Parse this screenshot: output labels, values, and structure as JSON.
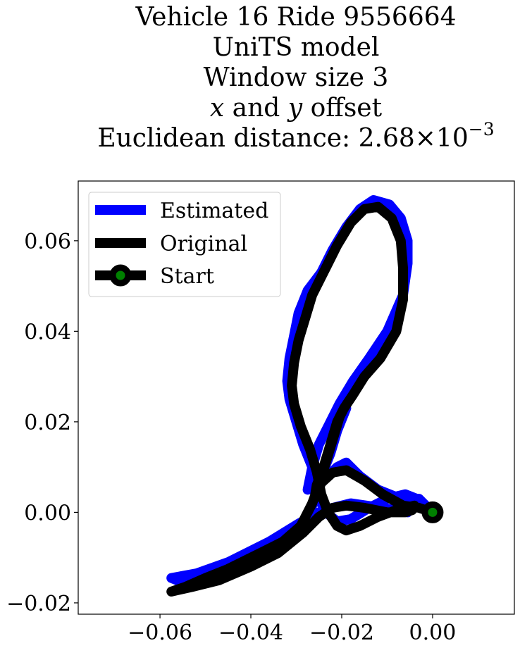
{
  "chart_data": {
    "type": "line",
    "title": {
      "lines": [
        "Vehicle 16 Ride 9556664",
        "UniTS model",
        "Window size 3"
      ],
      "offset_line": {
        "var1": "x",
        "mid": " and ",
        "var2": "y",
        "tail": " offset"
      },
      "distance_line": {
        "prefix": "Euclidean distance: ",
        "mantissa": "2.68",
        "times": "×",
        "base": "10",
        "exponent": "−3"
      }
    },
    "xlabel": "",
    "ylabel": "",
    "xlim": [
      -0.078,
      0.018
    ],
    "ylim": [
      -0.0225,
      0.0732
    ],
    "xticks": [
      -0.06,
      -0.04,
      -0.02,
      0.0
    ],
    "xtick_labels": [
      "−0.06",
      "−0.04",
      "−0.02",
      "0.00"
    ],
    "yticks": [
      -0.02,
      0.0,
      0.02,
      0.04,
      0.06
    ],
    "ytick_labels": [
      "−0.02",
      "0.00",
      "0.02",
      "0.04",
      "0.06"
    ],
    "grid": false,
    "legend_position": "top-left",
    "series": [
      {
        "name": "Estimated",
        "color": "#0000ff",
        "points": [
          [
            0.0,
            0.0
          ],
          [
            -0.003,
            0.003
          ],
          [
            -0.007,
            0.003
          ],
          [
            -0.012,
            0.005
          ],
          [
            -0.016,
            0.008
          ],
          [
            -0.019,
            0.011
          ],
          [
            -0.021,
            0.01
          ],
          [
            -0.023,
            0.008
          ],
          [
            -0.0255,
            0.0055
          ],
          [
            -0.0275,
            0.005
          ],
          [
            -0.0265,
            0.01
          ],
          [
            -0.025,
            0.015
          ],
          [
            -0.0225,
            0.02
          ],
          [
            -0.0205,
            0.024
          ],
          [
            -0.0175,
            0.029
          ],
          [
            -0.014,
            0.034
          ],
          [
            -0.01,
            0.04
          ],
          [
            -0.0065,
            0.048
          ],
          [
            -0.0055,
            0.055
          ],
          [
            -0.0055,
            0.06
          ],
          [
            -0.007,
            0.065
          ],
          [
            -0.0095,
            0.068
          ],
          [
            -0.013,
            0.069
          ],
          [
            -0.016,
            0.067
          ],
          [
            -0.019,
            0.063
          ],
          [
            -0.022,
            0.058
          ],
          [
            -0.0245,
            0.053
          ],
          [
            -0.0275,
            0.049
          ],
          [
            -0.0295,
            0.044
          ],
          [
            -0.0305,
            0.039
          ],
          [
            -0.0315,
            0.034
          ],
          [
            -0.032,
            0.029
          ],
          [
            -0.0315,
            0.025
          ],
          [
            -0.03,
            0.02
          ],
          [
            -0.0285,
            0.015
          ],
          [
            -0.0265,
            0.01
          ],
          [
            -0.0255,
            0.006
          ],
          [
            -0.025,
            0.003
          ],
          [
            -0.0235,
            0.0
          ],
          [
            -0.021,
            -0.002
          ],
          [
            -0.018,
            -0.0015
          ],
          [
            -0.014,
            0.001
          ],
          [
            -0.01,
            0.003
          ],
          [
            -0.006,
            0.004
          ],
          [
            -0.0035,
            0.003
          ],
          [
            -0.0055,
            0.0
          ],
          [
            -0.011,
            0.001
          ],
          [
            -0.018,
            0.002
          ],
          [
            -0.022,
            0.001
          ],
          [
            -0.025,
            0.0
          ],
          [
            -0.0295,
            -0.0025
          ],
          [
            -0.036,
            -0.0065
          ],
          [
            -0.045,
            -0.011
          ],
          [
            -0.052,
            -0.0135
          ],
          [
            -0.0575,
            -0.0145
          ],
          [
            -0.055,
            -0.0155
          ],
          [
            -0.048,
            -0.014
          ],
          [
            -0.042,
            -0.012
          ],
          [
            -0.036,
            -0.0095
          ],
          [
            -0.031,
            -0.006
          ],
          [
            -0.0275,
            -0.0015
          ],
          [
            -0.026,
            0.003
          ],
          [
            -0.0245,
            0.008
          ],
          [
            -0.0225,
            0.013
          ],
          [
            -0.021,
            0.018
          ],
          [
            -0.019,
            0.023
          ]
        ]
      },
      {
        "name": "Original",
        "color": "#000000",
        "points": [
          [
            0.0,
            0.0
          ],
          [
            -0.003,
            0.001
          ],
          [
            -0.0065,
            0.0015
          ],
          [
            -0.011,
            0.004
          ],
          [
            -0.015,
            0.007
          ],
          [
            -0.019,
            0.0093
          ],
          [
            -0.022,
            0.0088
          ],
          [
            -0.0245,
            0.0065
          ],
          [
            -0.026,
            0.003
          ],
          [
            -0.0255,
            0.006
          ],
          [
            -0.024,
            0.01
          ],
          [
            -0.0225,
            0.015
          ],
          [
            -0.021,
            0.02
          ],
          [
            -0.0195,
            0.023
          ],
          [
            -0.0175,
            0.026
          ],
          [
            -0.015,
            0.03
          ],
          [
            -0.0115,
            0.034
          ],
          [
            -0.008,
            0.04
          ],
          [
            -0.0065,
            0.047
          ],
          [
            -0.0065,
            0.054
          ],
          [
            -0.007,
            0.06
          ],
          [
            -0.009,
            0.065
          ],
          [
            -0.012,
            0.0675
          ],
          [
            -0.015,
            0.067
          ],
          [
            -0.018,
            0.064
          ],
          [
            -0.021,
            0.059
          ],
          [
            -0.024,
            0.053
          ],
          [
            -0.0265,
            0.048
          ],
          [
            -0.028,
            0.043
          ],
          [
            -0.0295,
            0.038
          ],
          [
            -0.0305,
            0.033
          ],
          [
            -0.031,
            0.028
          ],
          [
            -0.0305,
            0.024
          ],
          [
            -0.029,
            0.019
          ],
          [
            -0.027,
            0.014
          ],
          [
            -0.0255,
            0.009
          ],
          [
            -0.0245,
            0.004
          ],
          [
            -0.023,
            0.0
          ],
          [
            -0.021,
            -0.003
          ],
          [
            -0.019,
            -0.004
          ],
          [
            -0.016,
            -0.003
          ],
          [
            -0.012,
            -0.001
          ],
          [
            -0.008,
            0.0005
          ],
          [
            -0.004,
            0.0015
          ],
          [
            -0.0045,
            0.0005
          ],
          [
            -0.006,
            0.0
          ],
          [
            -0.01,
            0.0
          ],
          [
            -0.015,
            0.001
          ],
          [
            -0.019,
            0.0015
          ],
          [
            -0.022,
            0.001
          ],
          [
            -0.025,
            -0.001
          ],
          [
            -0.0285,
            -0.0045
          ],
          [
            -0.034,
            -0.009
          ],
          [
            -0.04,
            -0.012
          ],
          [
            -0.047,
            -0.015
          ],
          [
            -0.053,
            -0.0165
          ],
          [
            -0.0575,
            -0.0175
          ],
          [
            -0.0545,
            -0.0165
          ],
          [
            -0.05,
            -0.0145
          ],
          [
            -0.045,
            -0.0125
          ],
          [
            -0.039,
            -0.0095
          ],
          [
            -0.033,
            -0.0065
          ],
          [
            -0.029,
            -0.003
          ],
          [
            -0.0265,
            0.002
          ],
          [
            -0.025,
            0.006
          ],
          [
            -0.0235,
            0.011
          ],
          [
            -0.022,
            0.016
          ],
          [
            -0.0205,
            0.021
          ]
        ]
      }
    ],
    "start": {
      "name": "Start",
      "x": 0.0,
      "y": 0.0,
      "edge_color": "#000000",
      "face_color": "#008000"
    }
  }
}
